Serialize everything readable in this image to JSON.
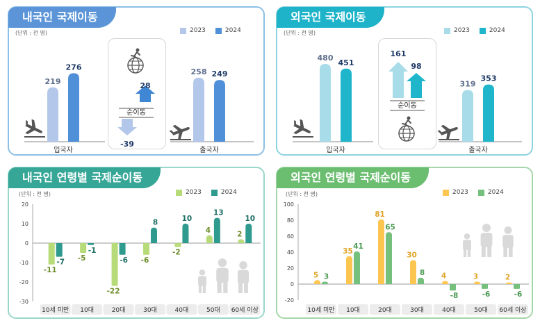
{
  "panels": {
    "p1": {
      "title": "내국인 국제이동",
      "unit": "(단위 : 천 명)",
      "legend": [
        "2023",
        "2024"
      ],
      "colors": [
        "#b3c7ea",
        "#4f90d8"
      ],
      "in_label": "입국자",
      "out_label": "출국자",
      "net_label": "순이동",
      "in_values": [
        219,
        276
      ],
      "out_values": [
        258,
        249
      ],
      "net_values": [
        -39,
        28
      ],
      "net_texts": [
        "-39",
        "28"
      ]
    },
    "p2": {
      "title": "외국인 국제이동",
      "unit": "(단위 : 천 명)",
      "legend": [
        "2023",
        "2024"
      ],
      "colors": [
        "#a8dce8",
        "#1fb6cc"
      ],
      "in_label": "입국자",
      "out_label": "출국자",
      "net_label": "순이동",
      "in_values": [
        480,
        451
      ],
      "out_values": [
        319,
        353
      ],
      "net_values": [
        161,
        98
      ],
      "net_texts": [
        "161",
        "98"
      ]
    },
    "p3": {
      "title": "내국인 연령별 국제순이동",
      "unit": "(단위 : 천 명)",
      "legend": [
        "2023",
        "2024"
      ]
    },
    "p4": {
      "title": "외국인 연령별 국제순이동",
      "unit": "(단위 : 천 명)",
      "legend": [
        "2023",
        "2024"
      ]
    }
  },
  "chart_data": [
    {
      "type": "bar",
      "title": "내국인 국제이동",
      "categories": [
        "입국자",
        "출국자"
      ],
      "series": [
        {
          "name": "2023",
          "values": [
            219,
            258
          ]
        },
        {
          "name": "2024",
          "values": [
            276,
            249
          ]
        }
      ],
      "net_migration": {
        "label": "순이동",
        "2023": -39,
        "2024": 28
      }
    },
    {
      "type": "bar",
      "title": "외국인 국제이동",
      "categories": [
        "입국자",
        "출국자"
      ],
      "series": [
        {
          "name": "2023",
          "values": [
            480,
            319
          ]
        },
        {
          "name": "2024",
          "values": [
            451,
            353
          ]
        }
      ],
      "net_migration": {
        "label": "순이동",
        "2023": 161,
        "2024": 98
      }
    },
    {
      "type": "bar",
      "title": "내국인 연령별 국제순이동",
      "categories": [
        "10세 미만",
        "10대",
        "20대",
        "30대",
        "40대",
        "50대",
        "60세 이상"
      ],
      "series": [
        {
          "name": "2023",
          "values": [
            -11,
            -5,
            -22,
            -6,
            -2,
            4,
            2
          ]
        },
        {
          "name": "2024",
          "values": [
            -7,
            -1,
            -6,
            8,
            10,
            13,
            10
          ]
        }
      ],
      "ylim": [
        -30,
        20
      ],
      "yticks": [
        20,
        10,
        0,
        -10,
        -20,
        -30
      ],
      "colors": [
        "#b8db79",
        "#2f9a8e"
      ]
    },
    {
      "type": "bar",
      "title": "외국인 연령별 국제순이동",
      "categories": [
        "10세 미만",
        "10대",
        "20대",
        "30대",
        "40대",
        "50대",
        "60세 이상"
      ],
      "series": [
        {
          "name": "2023",
          "values": [
            5,
            35,
            81,
            30,
            4,
            3,
            2
          ]
        },
        {
          "name": "2024",
          "values": [
            3,
            41,
            65,
            8,
            -8,
            -6,
            -6
          ]
        }
      ],
      "ylim": [
        -20,
        100
      ],
      "yticks": [
        100,
        80,
        60,
        40,
        20,
        0,
        -20
      ],
      "colors": [
        "#fcc650",
        "#76c07e"
      ]
    }
  ]
}
